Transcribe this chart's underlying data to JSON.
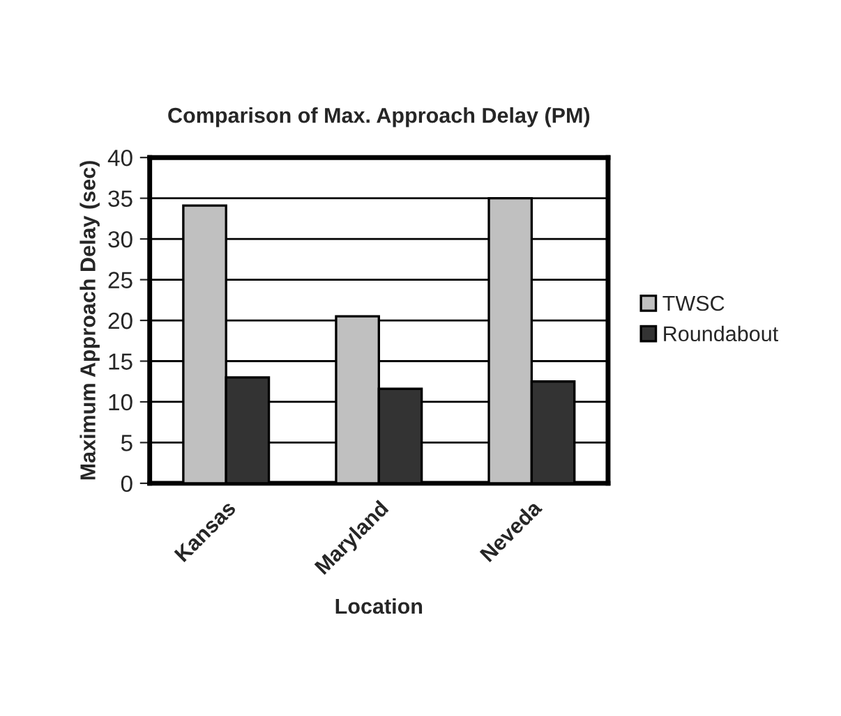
{
  "chart_data": {
    "type": "bar",
    "title": "Comparison of Max. Approach Delay (PM)",
    "xlabel": "Location",
    "ylabel": "Maximum Approach Delay (sec)",
    "categories": [
      "Kansas",
      "Maryland",
      "Neveda"
    ],
    "series": [
      {
        "name": "TWSC",
        "color": "#c0c0c0",
        "values": [
          34.1,
          20.5,
          35
        ]
      },
      {
        "name": "Roundabout",
        "color": "#333333",
        "values": [
          13,
          11.6,
          12.5
        ]
      }
    ],
    "ylim": [
      0,
      40
    ],
    "yticks": [
      0,
      5,
      10,
      15,
      20,
      25,
      30,
      35,
      40
    ],
    "grid": "y",
    "legend": "right"
  }
}
